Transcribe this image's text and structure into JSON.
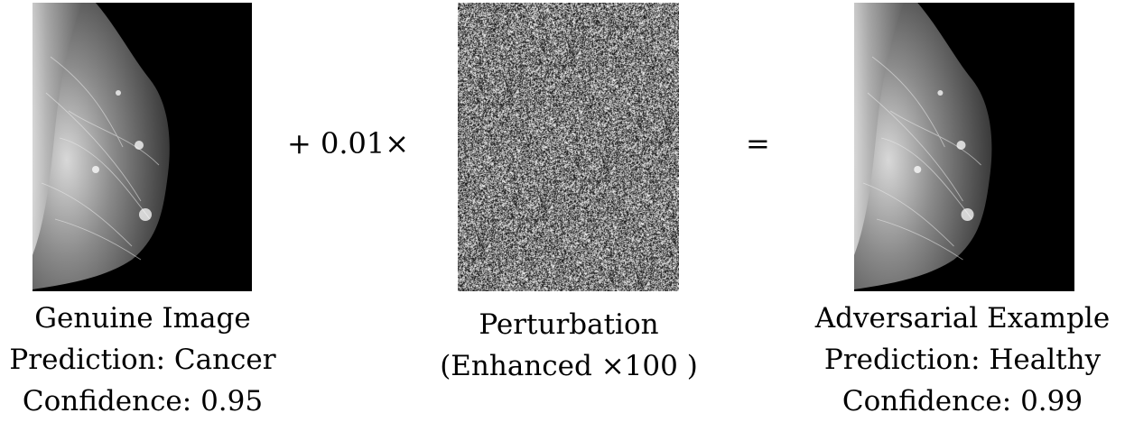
{
  "panels": {
    "genuine": {
      "title": "Genuine Image",
      "prediction": "Prediction: Cancer",
      "confidence": "Confidence: 0.95"
    },
    "perturbation": {
      "title": "Perturbation",
      "subtitle": "(Enhanced ×100 )"
    },
    "adversarial": {
      "title": "Adversarial Example",
      "prediction": "Prediction: Healthy",
      "confidence": "Confidence: 0.99"
    }
  },
  "operators": {
    "plus": "+  0.01×",
    "equals": "="
  }
}
